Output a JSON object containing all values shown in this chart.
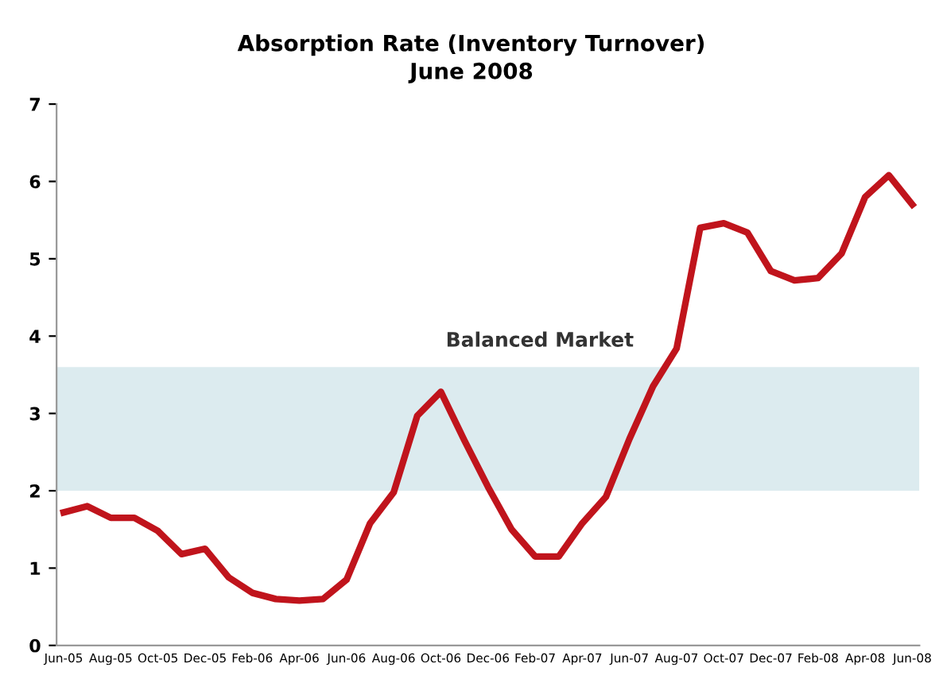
{
  "chart_data": {
    "type": "line",
    "title": "Absorption Rate (Inventory Turnover)",
    "subtitle": "June 2008",
    "categories": [
      "Jun-05",
      null,
      "Aug-05",
      null,
      "Oct-05",
      null,
      "Dec-05",
      null,
      "Feb-06",
      null,
      "Apr-06",
      null,
      "Jun-06",
      null,
      "Aug-06",
      null,
      "Oct-06",
      null,
      "Dec-06",
      null,
      "Feb-07",
      null,
      "Apr-07",
      null,
      "Jun-07",
      null,
      "Aug-07",
      null,
      "Oct-07",
      null,
      "Dec-07",
      null,
      "Feb-08",
      null,
      "Apr-08",
      null,
      "Jun-08"
    ],
    "series": [
      {
        "color": "#c0141c",
        "values": [
          1.72,
          1.8,
          1.65,
          1.65,
          1.48,
          1.18,
          1.25,
          0.88,
          0.68,
          0.6,
          0.58,
          0.6,
          0.85,
          1.58,
          1.98,
          2.97,
          3.28,
          2.65,
          2.05,
          1.5,
          1.15,
          1.15,
          1.58,
          1.92,
          2.67,
          3.35,
          3.84,
          5.4,
          5.46,
          5.34,
          4.84,
          4.72,
          4.75,
          5.07,
          5.8,
          6.08,
          5.7
        ]
      }
    ],
    "ylim": [
      0,
      7
    ],
    "yticks": [
      0,
      1,
      2,
      3,
      4,
      5,
      6,
      7
    ],
    "bands": [
      {
        "axis": "y",
        "from": 2,
        "to": 3.6,
        "label": "Balanced Market",
        "color": "#dcebef"
      }
    ],
    "grid": false,
    "marker": "none",
    "line_style": "solid"
  }
}
